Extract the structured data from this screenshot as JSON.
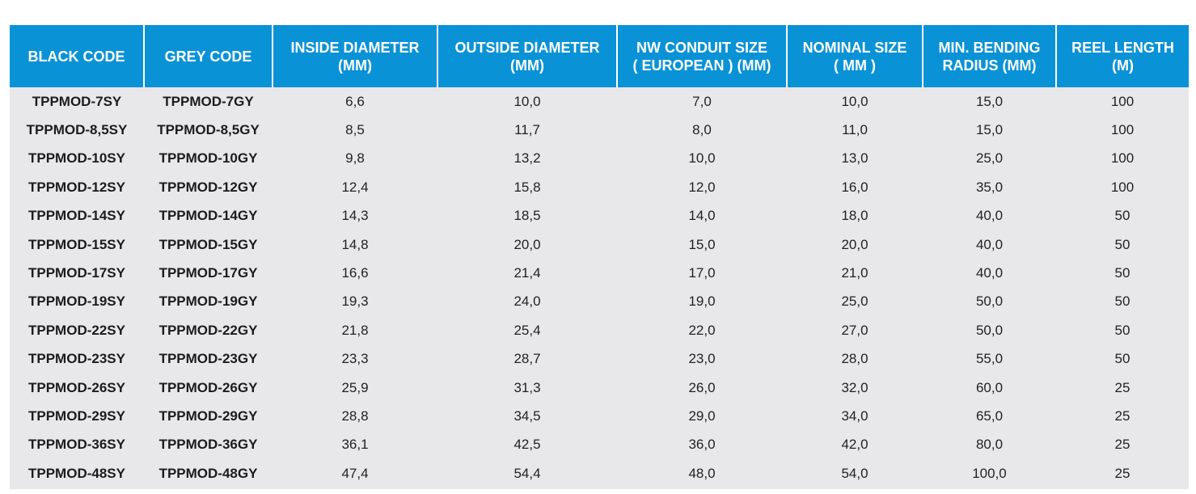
{
  "table": {
    "headers": [
      {
        "line1": "BLACK CODE",
        "line2": ""
      },
      {
        "line1": "GREY CODE",
        "line2": ""
      },
      {
        "line1": "INSIDE DIAMETER",
        "line2": "(MM)"
      },
      {
        "line1": "OUTSIDE DIAMETER",
        "line2": "(MM)"
      },
      {
        "line1": "NW CONDUIT SIZE",
        "line2": "( EUROPEAN ) (MM)"
      },
      {
        "line1": "NOMINAL SIZE",
        "line2": "( MM )"
      },
      {
        "line1": "MIN. BENDING",
        "line2": "RADIUS (MM)"
      },
      {
        "line1": "REEL LENGTH",
        "line2": "(M)"
      }
    ],
    "rows": [
      [
        "TPPMOD-7SY",
        "TPPMOD-7GY",
        "6,6",
        "10,0",
        "7,0",
        "10,0",
        "15,0",
        "100"
      ],
      [
        "TPPMOD-8,5SY",
        "TPPMOD-8,5GY",
        "8,5",
        "11,7",
        "8,0",
        "11,0",
        "15,0",
        "100"
      ],
      [
        "TPPMOD-10SY",
        "TPPMOD-10GY",
        "9,8",
        "13,2",
        "10,0",
        "13,0",
        "25,0",
        "100"
      ],
      [
        "TPPMOD-12SY",
        "TPPMOD-12GY",
        "12,4",
        "15,8",
        "12,0",
        "16,0",
        "35,0",
        "100"
      ],
      [
        "TPPMOD-14SY",
        "TPPMOD-14GY",
        "14,3",
        "18,5",
        "14,0",
        "18,0",
        "40,0",
        "50"
      ],
      [
        "TPPMOD-15SY",
        "TPPMOD-15GY",
        "14,8",
        "20,0",
        "15,0",
        "20,0",
        "40,0",
        "50"
      ],
      [
        "TPPMOD-17SY",
        "TPPMOD-17GY",
        "16,6",
        "21,4",
        "17,0",
        "21,0",
        "40,0",
        "50"
      ],
      [
        "TPPMOD-19SY",
        "TPPMOD-19GY",
        "19,3",
        "24,0",
        "19,0",
        "25,0",
        "50,0",
        "50"
      ],
      [
        "TPPMOD-22SY",
        "TPPMOD-22GY",
        "21,8",
        "25,4",
        "22,0",
        "27,0",
        "50,0",
        "50"
      ],
      [
        "TPPMOD-23SY",
        "TPPMOD-23GY",
        "23,3",
        "28,7",
        "23,0",
        "28,0",
        "55,0",
        "50"
      ],
      [
        "TPPMOD-26SY",
        "TPPMOD-26GY",
        "25,9",
        "31,3",
        "26,0",
        "32,0",
        "60,0",
        "25"
      ],
      [
        "TPPMOD-29SY",
        "TPPMOD-29GY",
        "28,8",
        "34,5",
        "29,0",
        "34,0",
        "65,0",
        "25"
      ],
      [
        "TPPMOD-36SY",
        "TPPMOD-36GY",
        "36,1",
        "42,5",
        "36,0",
        "42,0",
        "80,0",
        "25"
      ],
      [
        "TPPMOD-48SY",
        "TPPMOD-48GY",
        "47,4",
        "54,4",
        "48,0",
        "54,0",
        "100,0",
        "25"
      ]
    ]
  },
  "colors": {
    "header_bg": "#0a92d6",
    "header_text": "#ffffff",
    "body_bg": "#e8e8ea",
    "body_text": "#222222"
  }
}
